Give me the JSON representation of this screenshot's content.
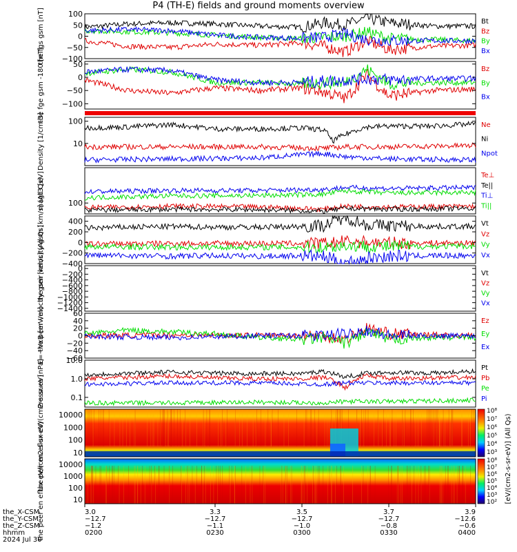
{
  "title": "P4 (TH-E) fields and ground moments overview",
  "colors": {
    "black": "#000000",
    "red": "#e00000",
    "green": "#00dd00",
    "blue": "#0000ee",
    "darkred": "#b00000"
  },
  "chart_data": [
    {
      "type": "line",
      "id": "fgs",
      "ylabel": "the fgs gsm [nT]",
      "ylim": [
        -100,
        100
      ],
      "yticks": [
        "100",
        "50",
        "0",
        "−50",
        "−100"
      ],
      "legend_placement": "right",
      "series": [
        {
          "name": "Bt",
          "color": "#000000",
          "x": [
            3.0,
            3.1,
            3.2,
            3.3,
            3.4,
            3.5,
            3.55,
            3.6,
            3.65,
            3.7,
            3.8,
            3.9
          ],
          "values": [
            40,
            55,
            60,
            55,
            45,
            40,
            60,
            50,
            80,
            60,
            45,
            45
          ]
        },
        {
          "name": "Bz",
          "color": "#e00000",
          "x": [
            3.0,
            3.1,
            3.2,
            3.3,
            3.4,
            3.5,
            3.55,
            3.6,
            3.65,
            3.7,
            3.8,
            3.9
          ],
          "values": [
            -20,
            -45,
            -50,
            -35,
            -40,
            -30,
            -45,
            -70,
            -20,
            -60,
            -45,
            -40
          ]
        },
        {
          "name": "By",
          "color": "#00dd00",
          "x": [
            3.0,
            3.1,
            3.2,
            3.3,
            3.4,
            3.5,
            3.55,
            3.6,
            3.65,
            3.7,
            3.8,
            3.9
          ],
          "values": [
            25,
            20,
            15,
            5,
            -5,
            -10,
            -5,
            0,
            20,
            -10,
            -15,
            -20
          ]
        },
        {
          "name": "Bx",
          "color": "#0000ee",
          "x": [
            3.0,
            3.1,
            3.2,
            3.3,
            3.4,
            3.5,
            3.55,
            3.6,
            3.65,
            3.7,
            3.8,
            3.9
          ],
          "values": [
            25,
            30,
            25,
            5,
            -5,
            -10,
            -5,
            10,
            -15,
            -20,
            -20,
            -20
          ]
        }
      ]
    },
    {
      "type": "line",
      "id": "fge",
      "ylabel": "the fge gsm -180 [nT]",
      "ylim": [
        -120,
        60
      ],
      "yticks": [
        "50",
        "0",
        "−50",
        "−100"
      ],
      "legend_placement": "right",
      "series": [
        {
          "name": "Bz",
          "color": "#e00000",
          "x": [
            3.0,
            3.1,
            3.2,
            3.3,
            3.4,
            3.5,
            3.55,
            3.6,
            3.65,
            3.7,
            3.8,
            3.9
          ],
          "values": [
            -10,
            -50,
            -60,
            -40,
            -50,
            -40,
            -55,
            -80,
            10,
            -70,
            -50,
            -45
          ]
        },
        {
          "name": "By",
          "color": "#00dd00",
          "x": [
            3.0,
            3.1,
            3.2,
            3.3,
            3.4,
            3.5,
            3.55,
            3.6,
            3.65,
            3.7,
            3.8,
            3.9
          ],
          "values": [
            15,
            30,
            20,
            -20,
            -20,
            -25,
            -20,
            -20,
            30,
            -25,
            -20,
            -20
          ]
        },
        {
          "name": "Bx",
          "color": "#0000ee",
          "x": [
            3.0,
            3.1,
            3.2,
            3.3,
            3.4,
            3.5,
            3.55,
            3.6,
            3.65,
            3.7,
            3.8,
            3.9
          ],
          "values": [
            20,
            30,
            25,
            -10,
            -20,
            -20,
            -15,
            -10,
            -5,
            -10,
            -5,
            -5
          ]
        }
      ]
    },
    {
      "type": "line",
      "id": "density",
      "scale": "log",
      "ylabel": "Density [1/cm-3]",
      "ylim": [
        1,
        150
      ],
      "yticks": [
        "100",
        "10"
      ],
      "legend_placement": "right",
      "series": [
        {
          "name": "Ne",
          "color": "#e00000",
          "x": [
            3.0,
            3.2,
            3.4,
            3.55,
            3.6,
            3.7,
            3.9
          ],
          "values": [
            7,
            7,
            7,
            6,
            7,
            7,
            8
          ]
        },
        {
          "name": "Ni",
          "color": "#000000",
          "x": [
            3.0,
            3.1,
            3.2,
            3.3,
            3.4,
            3.5,
            3.55,
            3.57,
            3.6,
            3.65,
            3.7,
            3.8,
            3.9
          ],
          "values": [
            50,
            55,
            70,
            45,
            45,
            50,
            40,
            12,
            25,
            55,
            60,
            60,
            75
          ]
        },
        {
          "name": "Npot",
          "color": "#0000ee",
          "x": [
            3.0,
            3.2,
            3.4,
            3.55,
            3.6,
            3.7,
            3.9
          ],
          "values": [
            1.8,
            2,
            2.2,
            3.5,
            2.5,
            2,
            1.8
          ]
        }
      ]
    },
    {
      "type": "line",
      "id": "temp",
      "scale": "log",
      "ylabel": "magt3 [eV]",
      "ylim": [
        30,
        5000
      ],
      "yticks": [
        "100"
      ],
      "legend_placement": "right",
      "series": [
        {
          "name": "Te⊥",
          "color": "#e00000",
          "x": [
            3.0,
            3.2,
            3.4,
            3.55,
            3.6,
            3.7,
            3.9
          ],
          "values": [
            60,
            70,
            65,
            50,
            70,
            65,
            70
          ]
        },
        {
          "name": "Te||",
          "color": "#000000",
          "x": [
            3.0,
            3.2,
            3.4,
            3.55,
            3.6,
            3.7,
            3.9
          ],
          "values": [
            45,
            50,
            48,
            40,
            55,
            50,
            55
          ]
        },
        {
          "name": "Ti⊥",
          "color": "#0000ee",
          "x": [
            3.0,
            3.2,
            3.4,
            3.55,
            3.6,
            3.7,
            3.9
          ],
          "values": [
            350,
            400,
            400,
            450,
            550,
            500,
            550
          ]
        },
        {
          "name": "Ti||",
          "color": "#00dd00",
          "x": [
            3.0,
            3.2,
            3.4,
            3.55,
            3.6,
            3.7,
            3.9
          ],
          "values": [
            180,
            220,
            230,
            260,
            380,
            300,
            320
          ]
        }
      ]
    },
    {
      "type": "line",
      "id": "peir_vel",
      "ylabel": "the peir velocity gsm [km/s] (All Qs)",
      "ylim": [
        -400,
        500
      ],
      "yticks": [
        "400",
        "200",
        "0",
        "−200",
        "−400"
      ],
      "legend_placement": "right",
      "series": [
        {
          "name": "Vt",
          "color": "#000000",
          "x": [
            3.0,
            3.1,
            3.2,
            3.3,
            3.4,
            3.5,
            3.55,
            3.6,
            3.65,
            3.7,
            3.8,
            3.9
          ],
          "values": [
            270,
            290,
            300,
            290,
            290,
            300,
            320,
            480,
            330,
            320,
            300,
            300
          ]
        },
        {
          "name": "Vz",
          "color": "#e00000",
          "x": [
            3.0,
            3.2,
            3.4,
            3.55,
            3.6,
            3.7,
            3.9
          ],
          "values": [
            -30,
            -20,
            -20,
            -20,
            20,
            -10,
            -10
          ]
        },
        {
          "name": "Vy",
          "color": "#00dd00",
          "x": [
            3.0,
            3.2,
            3.4,
            3.55,
            3.6,
            3.7,
            3.9
          ],
          "values": [
            -80,
            -90,
            -90,
            -90,
            -60,
            -80,
            -70
          ]
        },
        {
          "name": "Vx",
          "color": "#0000ee",
          "x": [
            3.0,
            3.1,
            3.2,
            3.3,
            3.4,
            3.5,
            3.55,
            3.6,
            3.65,
            3.7,
            3.8,
            3.9
          ],
          "values": [
            -240,
            -250,
            -260,
            -250,
            -260,
            -250,
            -270,
            -380,
            -300,
            -260,
            -250,
            -250
          ]
        }
      ]
    },
    {
      "type": "line",
      "id": "peer_vel",
      "ylabel": "the peer velocity gsm [km/s] (All Qs)",
      "ylim": [
        -1500,
        100
      ],
      "yticks": [
        "0",
        "−200",
        "−400",
        "−600",
        "−800",
        "−1000",
        "−1200",
        "−1400"
      ],
      "legend_placement": "right",
      "series": [
        {
          "name": "Vt",
          "color": "#000000",
          "x": [],
          "values": []
        },
        {
          "name": "Vz",
          "color": "#e00000",
          "x": [],
          "values": []
        },
        {
          "name": "Vy",
          "color": "#00dd00",
          "x": [],
          "values": []
        },
        {
          "name": "Vx",
          "color": "#0000ee",
          "x": [],
          "values": []
        }
      ]
    },
    {
      "type": "line",
      "id": "efield",
      "ylabel": "E=−VxB [mV/m]",
      "ylim": [
        -60,
        60
      ],
      "yticks": [
        "60",
        "40",
        "20",
        "0",
        "−20",
        "−40",
        "−60"
      ],
      "legend_placement": "right",
      "series": [
        {
          "name": "Ez",
          "color": "#e00000",
          "x": [
            3.0,
            3.2,
            3.4,
            3.55,
            3.6,
            3.65,
            3.7,
            3.9
          ],
          "values": [
            0,
            2,
            1,
            0,
            -10,
            20,
            5,
            0
          ]
        },
        {
          "name": "Ey",
          "color": "#00dd00",
          "x": [
            3.0,
            3.1,
            3.2,
            3.3,
            3.4,
            3.5,
            3.55,
            3.6,
            3.65,
            3.7,
            3.8,
            3.9
          ],
          "values": [
            5,
            15,
            10,
            5,
            -5,
            -10,
            -5,
            -20,
            10,
            -10,
            -5,
            -5
          ]
        },
        {
          "name": "Ex",
          "color": "#0000ee",
          "x": [
            3.0,
            3.2,
            3.4,
            3.55,
            3.6,
            3.65,
            3.7,
            3.9
          ],
          "values": [
            -2,
            -5,
            0,
            0,
            5,
            15,
            0,
            0
          ]
        }
      ]
    },
    {
      "type": "line",
      "id": "pressure",
      "scale": "log",
      "ylabel": "Pressure [nPa]",
      "ylim": [
        0.03,
        10
      ],
      "yticks": [
        "10.0",
        "1.0",
        "0.1"
      ],
      "legend_placement": "right",
      "series": [
        {
          "name": "Pt",
          "color": "#000000",
          "x": [
            3.0,
            3.1,
            3.2,
            3.3,
            3.4,
            3.5,
            3.55,
            3.6,
            3.65,
            3.7,
            3.8,
            3.9
          ],
          "values": [
            1.6,
            2.0,
            2.3,
            2.0,
            1.9,
            1.9,
            2.5,
            1.2,
            2.0,
            2.2,
            2.0,
            2.5
          ]
        },
        {
          "name": "Pb",
          "color": "#e00000",
          "x": [
            3.0,
            3.1,
            3.2,
            3.3,
            3.4,
            3.5,
            3.55,
            3.6,
            3.65,
            3.7,
            3.8,
            3.9
          ],
          "values": [
            1.0,
            1.2,
            1.4,
            1.1,
            1.0,
            1.0,
            1.2,
            0.3,
            1.5,
            1.0,
            1.1,
            1.2
          ]
        },
        {
          "name": "Pe",
          "color": "#00dd00",
          "x": [
            3.0,
            3.2,
            3.4,
            3.55,
            3.6,
            3.7,
            3.9
          ],
          "values": [
            0.05,
            0.05,
            0.055,
            0.05,
            0.06,
            0.06,
            0.07
          ]
        },
        {
          "name": "Pi",
          "color": "#0000ee",
          "x": [
            3.0,
            3.2,
            3.4,
            3.55,
            3.6,
            3.7,
            3.9
          ],
          "values": [
            0.5,
            0.6,
            0.6,
            0.5,
            0.6,
            0.6,
            0.6
          ]
        }
      ]
    },
    {
      "type": "heatmap",
      "id": "peir_spec",
      "ylabel": "the peir en eflux eV/(cm2-s-sr-eV)",
      "yticks": [
        "10000",
        "1000",
        "100",
        "10"
      ]
    },
    {
      "type": "heatmap",
      "id": "peer_spec",
      "ylabel": "the peer en eflux eV/(cm2-s-sr-eV)",
      "yticks": [
        "10000",
        "1000",
        "100",
        "10"
      ]
    }
  ],
  "colorbar": {
    "label": "[eV/(cm2-s-sr-eV)] (All Qs)",
    "ticks_top": [
      "10⁸",
      "10⁷",
      "10⁶",
      "10⁵",
      "10⁴",
      "10³"
    ],
    "ticks_bottom": [
      "10⁸",
      "10⁷",
      "10⁶",
      "10⁵",
      "10⁴",
      "10³",
      "10²"
    ]
  },
  "xaxis": {
    "row_labels": [
      "the_X-CSM",
      "the_Y-CSM",
      "the_Z-CSM",
      "hhmm",
      "2024 Jul 30"
    ],
    "ticks": [
      {
        "x": [
          "3.0",
          "−12.7",
          "−1.2",
          "0200"
        ]
      },
      {
        "x": [
          "3.3",
          "−12.7",
          "−1.1",
          "0230"
        ]
      },
      {
        "x": [
          "3.5",
          "−12.7",
          "−1.0",
          "0300"
        ]
      },
      {
        "x": [
          "3.7",
          "−12.7",
          "−0.8",
          "0330"
        ]
      },
      {
        "x": [
          "3.9",
          "−12.6",
          "−0.6",
          "0400"
        ]
      }
    ]
  }
}
